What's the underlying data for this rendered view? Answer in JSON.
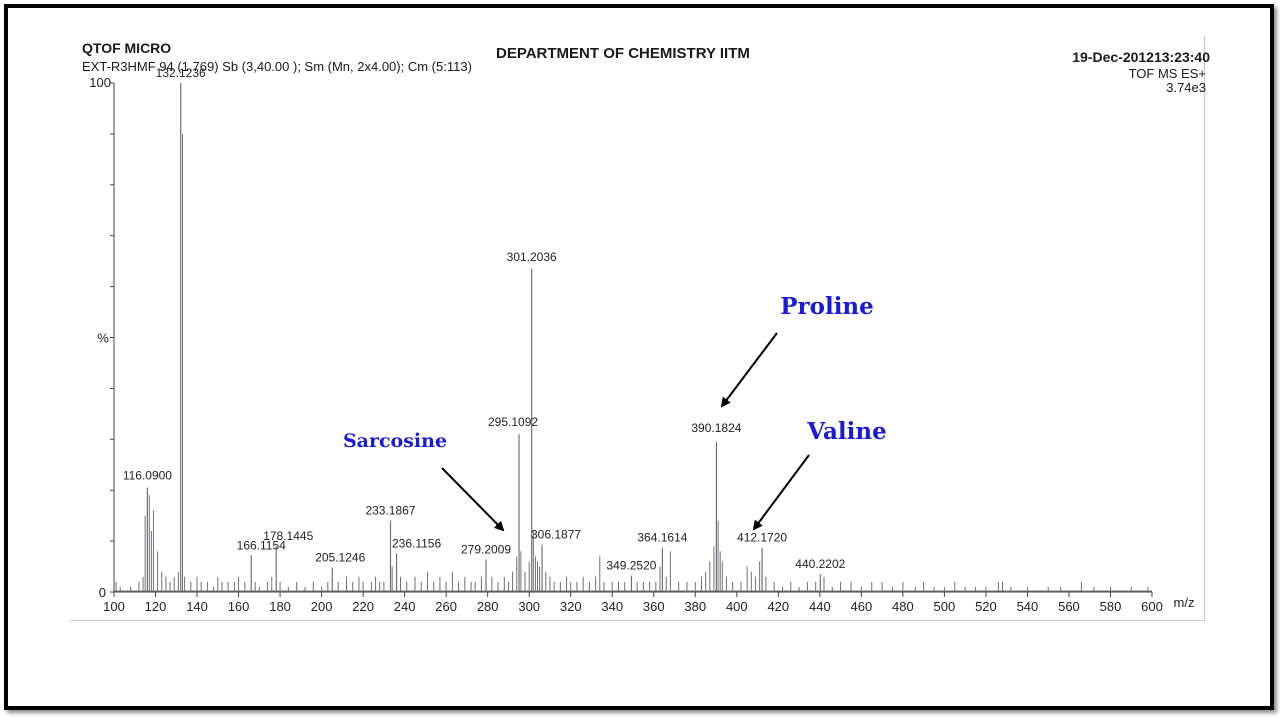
{
  "header": {
    "instrument": "QTOF MICRO",
    "department": "DEPARTMENT OF CHEMISTRY IITM",
    "datetime": "19-Dec-201213:23:40",
    "scan_info": "EXT-R3HMF  94 (1.769) Sb (3,40.00 ); Sm (Mn, 2x4.00); Cm (5:113)",
    "mode": "TOF MS ES+",
    "intensity": "3.74e3"
  },
  "chart_data": {
    "type": "bar",
    "xlabel": "m/z",
    "ylabel": "%",
    "xlim": [
      100,
      600
    ],
    "ylim": [
      0,
      100
    ],
    "x_ticks": [
      100,
      120,
      140,
      160,
      180,
      200,
      220,
      240,
      260,
      280,
      300,
      320,
      340,
      360,
      380,
      400,
      420,
      440,
      460,
      480,
      500,
      520,
      540,
      560,
      580,
      600
    ],
    "y_tick_labels": [
      "0",
      "100"
    ],
    "labeled_peaks": [
      {
        "mz": 116.09,
        "rel": 20.5,
        "label": "116.0900"
      },
      {
        "mz": 132.1236,
        "rel": 100,
        "label": "132.1236"
      },
      {
        "mz": 166.1154,
        "rel": 7.2,
        "label": "166.1154"
      },
      {
        "mz": 178.1445,
        "rel": 9.0,
        "label": "178.1445"
      },
      {
        "mz": 205.1246,
        "rel": 4.8,
        "label": "205.1246"
      },
      {
        "mz": 233.1867,
        "rel": 14.0,
        "label": "233.1867"
      },
      {
        "mz": 236.1156,
        "rel": 7.6,
        "label": "236.1156"
      },
      {
        "mz": 279.2009,
        "rel": 6.4,
        "label": "279.2009"
      },
      {
        "mz": 295.1092,
        "rel": 31.0,
        "label": "295.1092"
      },
      {
        "mz": 301.2036,
        "rel": 63.5,
        "label": "301.2036"
      },
      {
        "mz": 306.1877,
        "rel": 9.3,
        "label": "306.1877"
      },
      {
        "mz": 349.252,
        "rel": 3.2,
        "label": "349.2520"
      },
      {
        "mz": 364.1614,
        "rel": 8.7,
        "label": "364.1614"
      },
      {
        "mz": 390.1824,
        "rel": 29.5,
        "label": "390.1824"
      },
      {
        "mz": 412.172,
        "rel": 8.7,
        "label": "412.1720"
      },
      {
        "mz": 440.2202,
        "rel": 3.5,
        "label": "440.2202"
      }
    ],
    "minor_peaks": [
      [
        101,
        2
      ],
      [
        103,
        1
      ],
      [
        108,
        1
      ],
      [
        112,
        2
      ],
      [
        114,
        3
      ],
      [
        115,
        15
      ],
      [
        117,
        19
      ],
      [
        118,
        12
      ],
      [
        119,
        16
      ],
      [
        121,
        8
      ],
      [
        123,
        4
      ],
      [
        125,
        3
      ],
      [
        127,
        2
      ],
      [
        129,
        3
      ],
      [
        131,
        4
      ],
      [
        133,
        90
      ],
      [
        134,
        3
      ],
      [
        137,
        2
      ],
      [
        140,
        3
      ],
      [
        142,
        2
      ],
      [
        145,
        2
      ],
      [
        148,
        1
      ],
      [
        150,
        3
      ],
      [
        152,
        2
      ],
      [
        155,
        2
      ],
      [
        158,
        2
      ],
      [
        160,
        3
      ],
      [
        163,
        2
      ],
      [
        168,
        2
      ],
      [
        170,
        1
      ],
      [
        174,
        2
      ],
      [
        176,
        3
      ],
      [
        180,
        2
      ],
      [
        184,
        1
      ],
      [
        188,
        2
      ],
      [
        192,
        1
      ],
      [
        196,
        2
      ],
      [
        200,
        1
      ],
      [
        203,
        2
      ],
      [
        208,
        2
      ],
      [
        212,
        3
      ],
      [
        215,
        2
      ],
      [
        218,
        3
      ],
      [
        220,
        2
      ],
      [
        224,
        2
      ],
      [
        226,
        3
      ],
      [
        228,
        2
      ],
      [
        230,
        2
      ],
      [
        234,
        5
      ],
      [
        238,
        3
      ],
      [
        241,
        2
      ],
      [
        245,
        3
      ],
      [
        248,
        2
      ],
      [
        251,
        4
      ],
      [
        254,
        2
      ],
      [
        257,
        3
      ],
      [
        260,
        2
      ],
      [
        263,
        4
      ],
      [
        266,
        2
      ],
      [
        269,
        3
      ],
      [
        272,
        2
      ],
      [
        274,
        2
      ],
      [
        277,
        3
      ],
      [
        282,
        3
      ],
      [
        285,
        2
      ],
      [
        288,
        3
      ],
      [
        290,
        2
      ],
      [
        292,
        4
      ],
      [
        294,
        7
      ],
      [
        296,
        8
      ],
      [
        298,
        4
      ],
      [
        300,
        6
      ],
      [
        302,
        12
      ],
      [
        303,
        7
      ],
      [
        304,
        6
      ],
      [
        305,
        5
      ],
      [
        308,
        4
      ],
      [
        310,
        3
      ],
      [
        312,
        2
      ],
      [
        315,
        2
      ],
      [
        318,
        3
      ],
      [
        320,
        2
      ],
      [
        323,
        2
      ],
      [
        326,
        3
      ],
      [
        329,
        2
      ],
      [
        332,
        3
      ],
      [
        334,
        7
      ],
      [
        336,
        2
      ],
      [
        340,
        2
      ],
      [
        343,
        2
      ],
      [
        346,
        2
      ],
      [
        352,
        2
      ],
      [
        355,
        2
      ],
      [
        358,
        2
      ],
      [
        361,
        2
      ],
      [
        363,
        5
      ],
      [
        366,
        3
      ],
      [
        368,
        8
      ],
      [
        372,
        2
      ],
      [
        376,
        2
      ],
      [
        380,
        2
      ],
      [
        383,
        3
      ],
      [
        385,
        4
      ],
      [
        387,
        6
      ],
      [
        389,
        9
      ],
      [
        391,
        14
      ],
      [
        392,
        8
      ],
      [
        393,
        6
      ],
      [
        395,
        3
      ],
      [
        398,
        2
      ],
      [
        402,
        2
      ],
      [
        405,
        5
      ],
      [
        407,
        4
      ],
      [
        409,
        3
      ],
      [
        411,
        6
      ],
      [
        414,
        3
      ],
      [
        418,
        2
      ],
      [
        422,
        1
      ],
      [
        426,
        2
      ],
      [
        430,
        1
      ],
      [
        434,
        2
      ],
      [
        438,
        2
      ],
      [
        442,
        3
      ],
      [
        446,
        1
      ],
      [
        450,
        2
      ],
      [
        455,
        2
      ],
      [
        460,
        1
      ],
      [
        465,
        2
      ],
      [
        470,
        2
      ],
      [
        475,
        1
      ],
      [
        480,
        2
      ],
      [
        486,
        1
      ],
      [
        490,
        2
      ],
      [
        495,
        1
      ],
      [
        500,
        1
      ],
      [
        505,
        2
      ],
      [
        510,
        1
      ],
      [
        515,
        1
      ],
      [
        520,
        1
      ],
      [
        526,
        2
      ],
      [
        528,
        2
      ],
      [
        532,
        1
      ],
      [
        540,
        1
      ],
      [
        550,
        1
      ],
      [
        556,
        1
      ],
      [
        566,
        2
      ],
      [
        572,
        1
      ],
      [
        580,
        1
      ],
      [
        590,
        1
      ],
      [
        598,
        1
      ]
    ]
  },
  "annotations": [
    {
      "label": "Sarcosine",
      "color": "#1a1ad8"
    },
    {
      "label": "Proline",
      "color": "#1a1ad8"
    },
    {
      "label": "Valine",
      "color": "#1a1ad8"
    }
  ]
}
